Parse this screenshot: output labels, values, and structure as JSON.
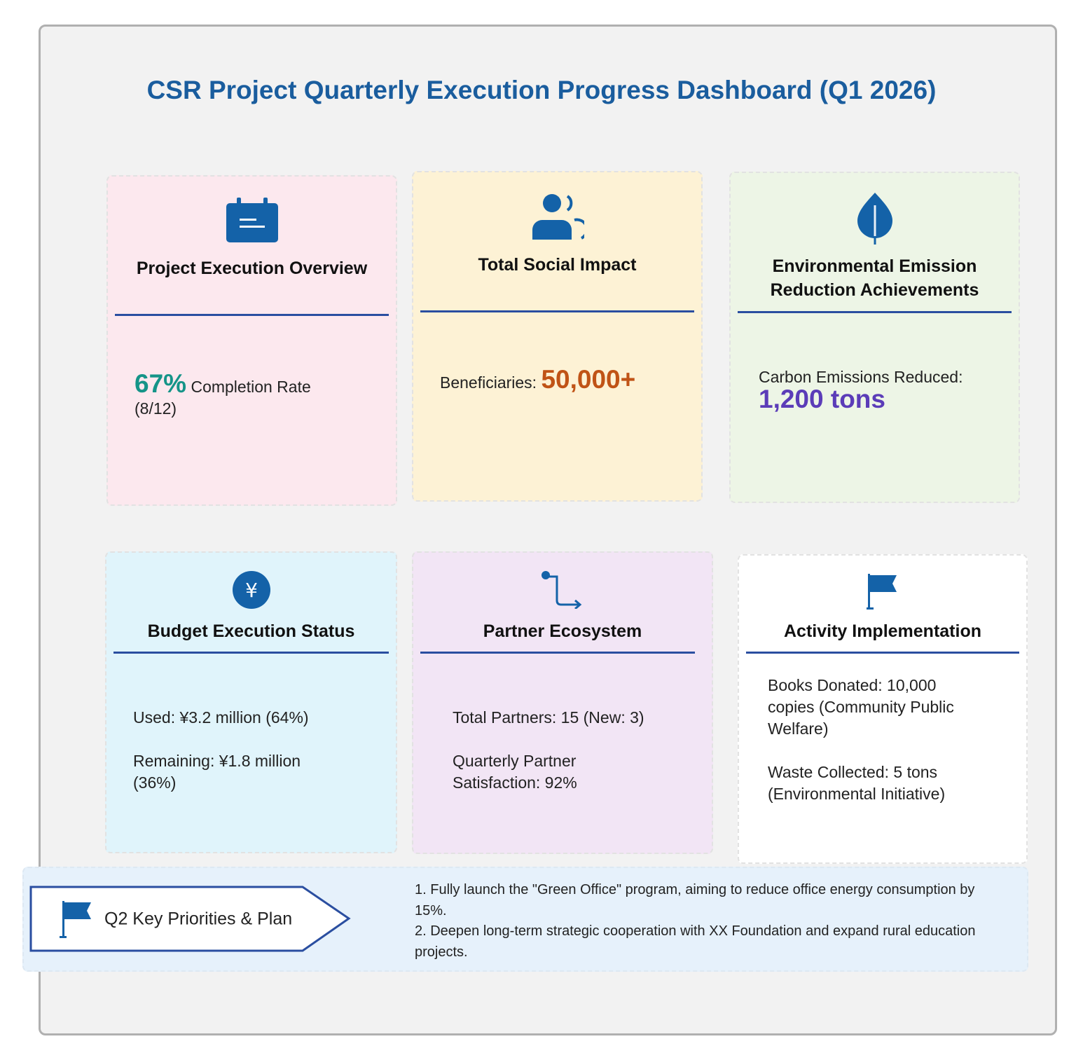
{
  "title": "CSR Project Quarterly Execution Progress Dashboard (Q1 2026)",
  "cards": [
    {
      "title": "Project Execution Overview",
      "highlight": "67%",
      "text": "Completion Rate",
      "note": "(8/12)"
    },
    {
      "title": "Total Social Impact",
      "text": "Beneficiaries:",
      "highlight": "50,000+"
    },
    {
      "title": "Environmental Emission Reduction Achievements",
      "text": "Carbon Emissions Reduced:",
      "highlight": "1,200 tons"
    },
    {
      "title": "Budget Execution Status",
      "lines": [
        "Used: ¥3.2 million (64%)",
        "Remaining: ¥1.8 million (36%)"
      ]
    },
    {
      "title": "Partner Ecosystem",
      "lines": [
        "Total Partners: 15 (New: 3)",
        "Quarterly Partner Satisfaction: 92%"
      ]
    },
    {
      "title": "Activity Implementation",
      "lines": [
        "Books Donated: 10,000 copies (Community Public Welfare)",
        "Waste Collected: 5 tons (Environmental Initiative)"
      ]
    }
  ],
  "plan": {
    "label": "Q2 Key Priorities & Plan",
    "items": [
      "1. Fully launch the \"Green Office\" program, aiming to reduce office energy consumption by 15%.",
      "2. Deepen long-term strategic cooperation with XX Foundation and expand rural education projects."
    ]
  }
}
